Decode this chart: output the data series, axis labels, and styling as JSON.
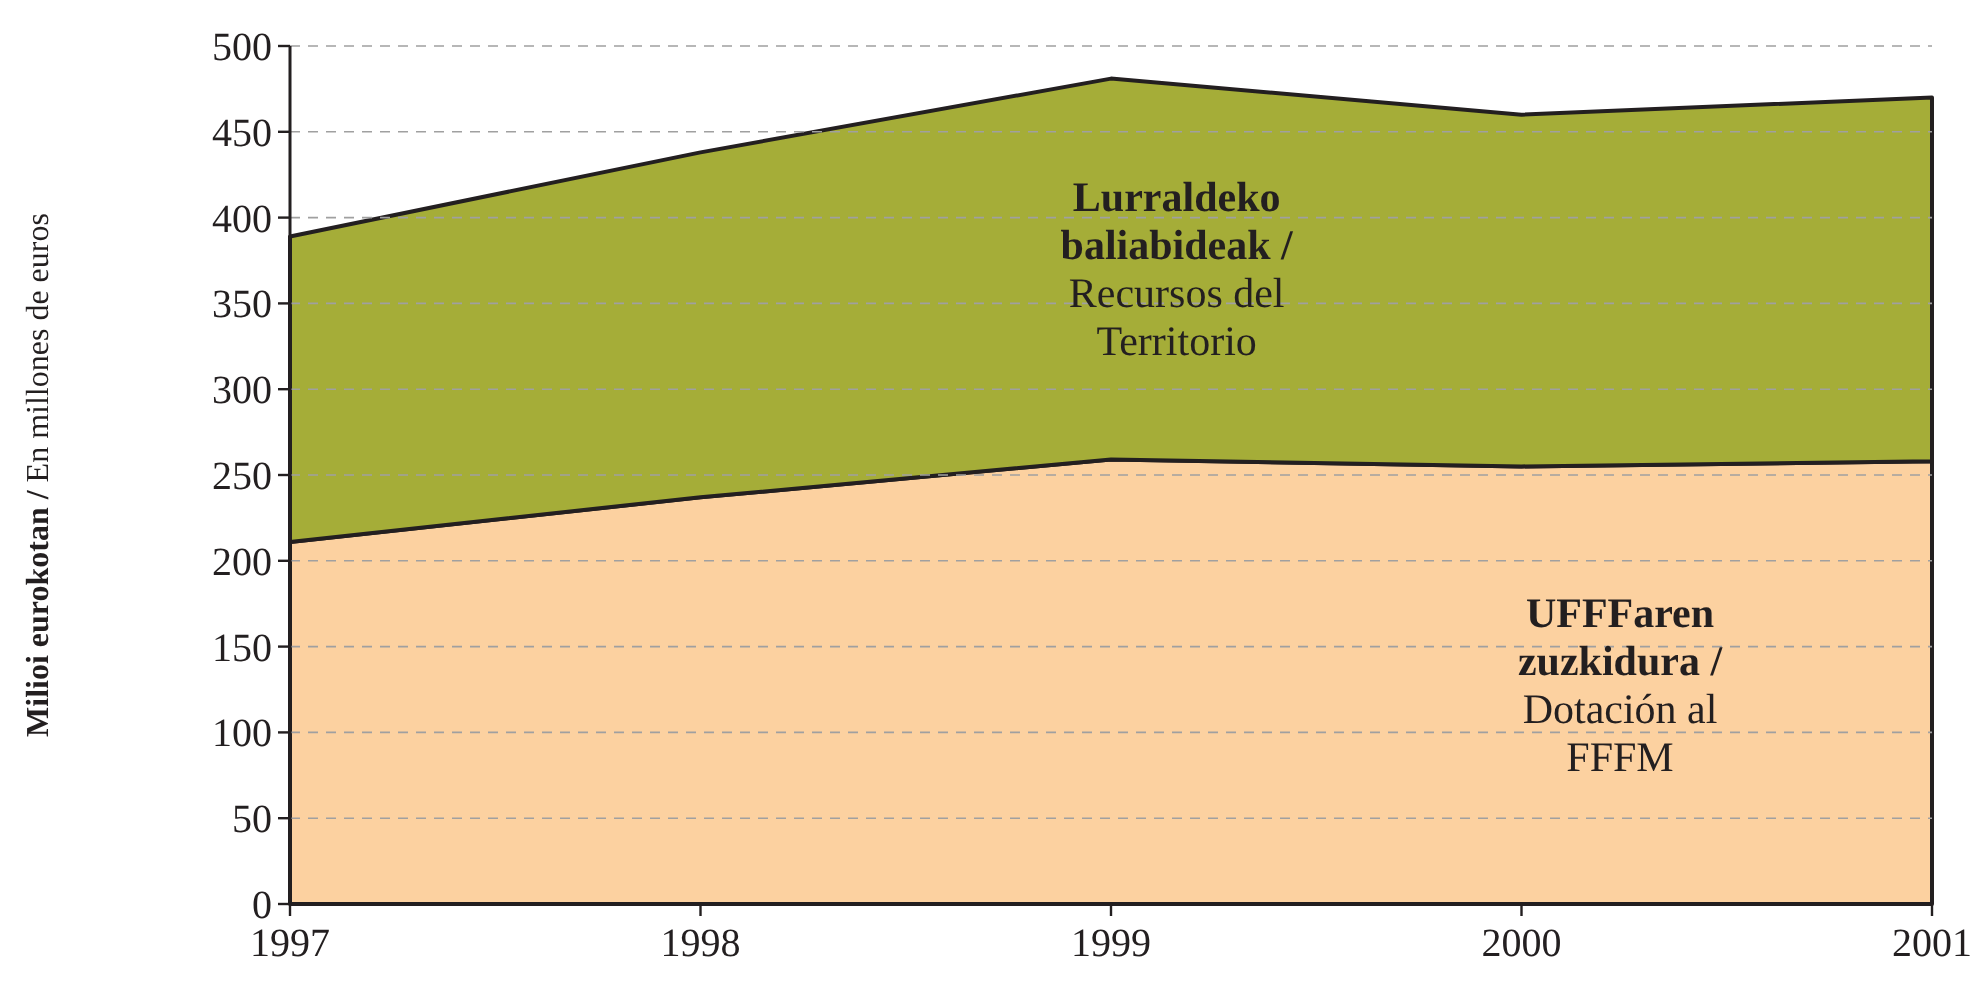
{
  "chart_data": {
    "type": "area",
    "stacked": true,
    "ylabel": "Milioi eurokotan / En millones de euros",
    "x": [
      1997,
      1998,
      1999,
      2000,
      2001
    ],
    "xlim": [
      1997,
      2001
    ],
    "xticks": [
      1997,
      1998,
      1999,
      2000,
      2001
    ],
    "ylim": [
      0,
      500
    ],
    "yticks": [
      0,
      50,
      100,
      150,
      200,
      250,
      300,
      350,
      400,
      450,
      500
    ],
    "grid": "y",
    "series": [
      {
        "name": "UFFFaren zuzkidura / Dotación al FFFM",
        "color": "#fcd1a0",
        "values": [
          211,
          237,
          259,
          255,
          258
        ]
      },
      {
        "name": "Lurraldeko baliabideak / Recursos del Territorio",
        "color": "#a5ad38",
        "values": [
          178,
          201,
          222,
          205,
          212
        ]
      }
    ]
  }
}
